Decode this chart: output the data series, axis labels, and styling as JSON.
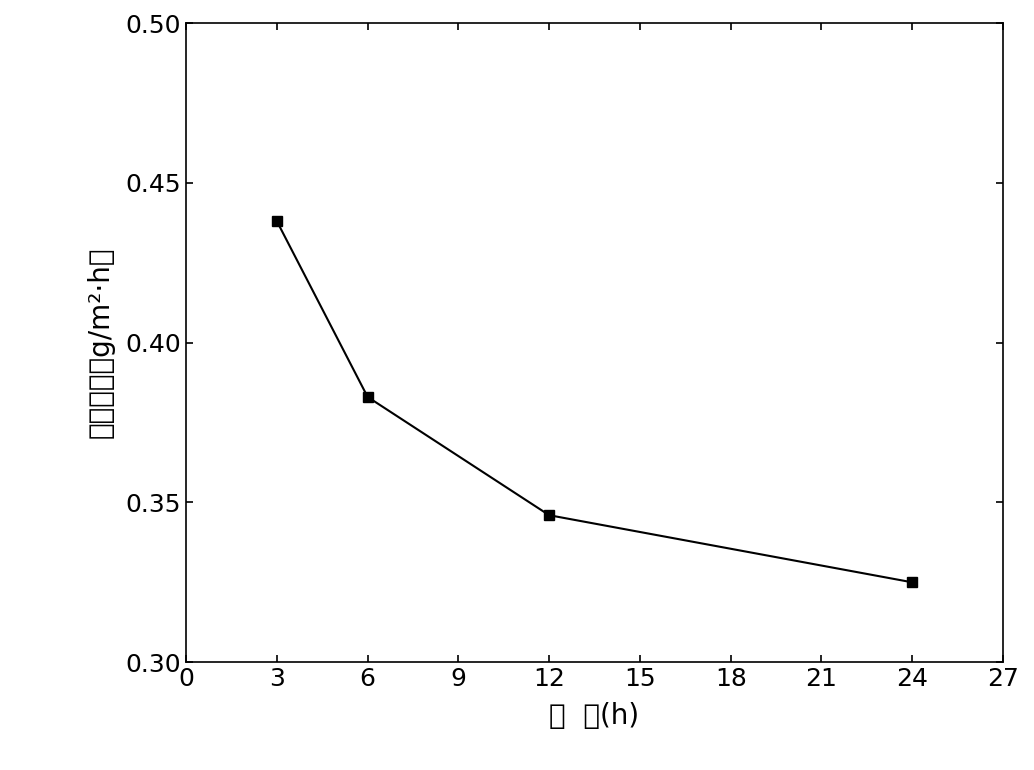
{
  "x": [
    3,
    6,
    12,
    24
  ],
  "y": [
    0.438,
    0.383,
    0.346,
    0.325
  ],
  "xlim": [
    0,
    27
  ],
  "ylim": [
    0.3,
    0.5
  ],
  "xticks": [
    0,
    3,
    6,
    9,
    12,
    15,
    18,
    21,
    24,
    27
  ],
  "yticks": [
    0.3,
    0.35,
    0.4,
    0.45,
    0.5
  ],
  "xlabel": "时  间(h)",
  "ylabel": "腐蚀速率（g/m²·h）",
  "line_color": "#000000",
  "marker": "s",
  "marker_color": "#000000",
  "marker_size": 7,
  "line_width": 1.5,
  "background_color": "#ffffff",
  "tick_fontsize": 18,
  "label_fontsize": 20
}
